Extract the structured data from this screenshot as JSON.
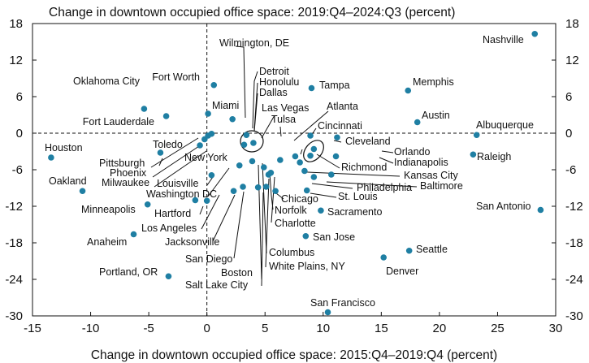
{
  "chart_data": {
    "type": "scatter",
    "title": "Change in downtown occupied office space: 2019:Q4–2024:Q3 (percent)",
    "xlabel": "Change in downtown occupied office space: 2015:Q4–2019:Q4 (percent)",
    "ylabel": "",
    "xlim": [
      -15,
      30
    ],
    "ylim": [
      -30,
      18
    ],
    "xticks": [
      -15,
      -10,
      -5,
      0,
      5,
      10,
      15,
      20,
      25,
      30
    ],
    "yticks": [
      18,
      12,
      6,
      0,
      -6,
      -12,
      -18,
      -24,
      -30
    ],
    "grid": false,
    "reference_lines": [
      "x=0 dashed",
      "y=0 dashed"
    ],
    "point_color": "#1f7fa3",
    "points": [
      {
        "label": "Nashville",
        "x": 28.2,
        "y": 16.3
      },
      {
        "label": "Wilmington, DE",
        "x": 2.2,
        "y": 2.3
      },
      {
        "label": "Fort Worth",
        "x": 0.6,
        "y": 7.9
      },
      {
        "label": "Oklahoma City",
        "x": -5.4,
        "y": 4.0
      },
      {
        "label": "Fort Lauderdale",
        "x": -3.5,
        "y": 2.8
      },
      {
        "label": "Miami",
        "x": 0.1,
        "y": 3.2
      },
      {
        "label": "Tampa",
        "x": 9.0,
        "y": 7.4
      },
      {
        "label": "Memphis",
        "x": 17.3,
        "y": 7.0
      },
      {
        "label": "Austin",
        "x": 18.1,
        "y": 1.8
      },
      {
        "label": "Albuquerque",
        "x": 23.2,
        "y": -0.3
      },
      {
        "label": "Houston",
        "x": -13.4,
        "y": -4.0
      },
      {
        "label": "Oakland",
        "x": -10.7,
        "y": -9.5
      },
      {
        "label": "Toledo",
        "x": -4.0,
        "y": -3.2
      },
      {
        "label": "New York",
        "x": -0.6,
        "y": -2.0
      },
      {
        "label": "Pittsburgh",
        "x": -0.2,
        "y": -1.0
      },
      {
        "label": "Phoenix",
        "x": 0.1,
        "y": -0.4
      },
      {
        "label": "Milwaukee",
        "x": 0.4,
        "y": -0.1
      },
      {
        "label": "Detroit",
        "x": 3.4,
        "y": -0.3
      },
      {
        "label": "Honolulu",
        "x": 4.0,
        "y": -1.6
      },
      {
        "label": "Dallas",
        "x": 3.2,
        "y": -1.9
      },
      {
        "label": "Las Vegas",
        "x": 6.3,
        "y": -4.4
      },
      {
        "label": "Tulsa",
        "x": 7.6,
        "y": -3.8
      },
      {
        "label": "Atlanta",
        "x": 8.0,
        "y": -4.8
      },
      {
        "label": "Cincinnati",
        "x": 8.9,
        "y": -0.4
      },
      {
        "label": "Cleveland",
        "x": 11.2,
        "y": -0.7
      },
      {
        "label": "Orlando",
        "x": 9.2,
        "y": -2.6
      },
      {
        "label": "Indianapolis",
        "x": 8.9,
        "y": -3.7
      },
      {
        "label": "Richmond",
        "x": 11.1,
        "y": -3.8
      },
      {
        "label": "Raleigh",
        "x": 22.9,
        "y": -3.5
      },
      {
        "label": "Kansas City",
        "x": 8.4,
        "y": -6.2
      },
      {
        "label": "Baltimore",
        "x": 10.7,
        "y": -6.8
      },
      {
        "label": "Philadelphia",
        "x": 9.2,
        "y": -7.2
      },
      {
        "label": "St. Louis",
        "x": 8.6,
        "y": -9.4
      },
      {
        "label": "Chicago",
        "x": 5.9,
        "y": -9.5
      },
      {
        "label": "Norfolk",
        "x": 5.1,
        "y": -8.8
      },
      {
        "label": "Charlotte",
        "x": 5.5,
        "y": -6.5
      },
      {
        "label": "Sacramento",
        "x": 9.8,
        "y": -12.7
      },
      {
        "label": "San Antonio",
        "x": 28.7,
        "y": -12.6
      },
      {
        "label": "Louisville",
        "x": 0.4,
        "y": -6.9
      },
      {
        "label": "Washington DC",
        "x": 2.8,
        "y": -5.3
      },
      {
        "label": "Hartford",
        "x": -1.0,
        "y": -11.0
      },
      {
        "label": "Minneapolis",
        "x": -5.1,
        "y": -11.7
      },
      {
        "label": "Los Angeles",
        "x": 0.0,
        "y": -11.1
      },
      {
        "label": "Jacksonville",
        "x": 2.3,
        "y": -9.5
      },
      {
        "label": "San Diego",
        "x": 3.1,
        "y": -8.8
      },
      {
        "label": "Boston",
        "x": 3.9,
        "y": -4.6
      },
      {
        "label": "Salt Lake City",
        "x": 4.4,
        "y": -8.9
      },
      {
        "label": "Columbus",
        "x": 4.9,
        "y": -5.6
      },
      {
        "label": "White Plains, NY",
        "x": 5.3,
        "y": -6.8
      },
      {
        "label": "San Jose",
        "x": 8.5,
        "y": -16.9
      },
      {
        "label": "Anaheim",
        "x": -6.3,
        "y": -16.6
      },
      {
        "label": "Seattle",
        "x": 17.4,
        "y": -19.3
      },
      {
        "label": "Denver",
        "x": 15.2,
        "y": -20.4
      },
      {
        "label": "Portland, OR",
        "x": -3.3,
        "y": -23.5
      },
      {
        "label": "San Francisco",
        "x": 10.4,
        "y": -29.4
      }
    ]
  }
}
